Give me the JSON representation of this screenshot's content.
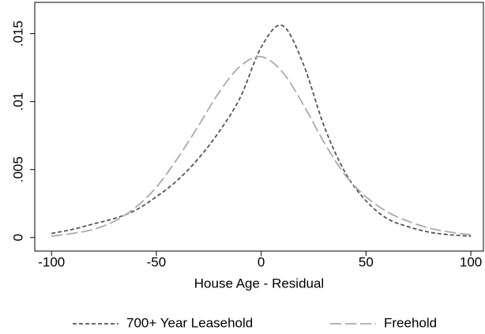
{
  "chart_data": {
    "type": "line",
    "xlabel": "House Age - Residual",
    "x": [
      -100,
      -90,
      -80,
      -70,
      -60,
      -50,
      -40,
      -30,
      -20,
      -10,
      0,
      10,
      20,
      30,
      40,
      50,
      60,
      70,
      80,
      90,
      100
    ],
    "series": [
      {
        "name": "700+ Year Leasehold",
        "color": "#555555",
        "values": [
          0.0003,
          0.0006,
          0.001,
          0.0014,
          0.002,
          0.003,
          0.0042,
          0.0058,
          0.0078,
          0.0103,
          0.014,
          0.0156,
          0.0128,
          0.0082,
          0.0048,
          0.0027,
          0.0014,
          0.0008,
          0.0004,
          0.0002,
          0.0001
        ]
      },
      {
        "name": "Freehold",
        "color": "#aaaaaa",
        "values": [
          0.0001,
          0.0003,
          0.0006,
          0.0012,
          0.0022,
          0.0037,
          0.0058,
          0.0082,
          0.0107,
          0.0126,
          0.0133,
          0.0122,
          0.0098,
          0.007,
          0.0046,
          0.003,
          0.0019,
          0.0012,
          0.0007,
          0.0004,
          0.0002
        ]
      }
    ],
    "xlim": [
      -108,
      106
    ],
    "xticks": [
      -100,
      -50,
      0,
      50,
      100
    ],
    "ylim": [
      -0.001,
      0.0173
    ],
    "yticks": [
      0,
      {
        "value": 0.005,
        "label": ".005"
      },
      {
        "value": 0.01,
        "label": ".01"
      },
      {
        "value": 0.015,
        "label": ".015"
      }
    ],
    "legend": "bottom",
    "grid": false
  }
}
